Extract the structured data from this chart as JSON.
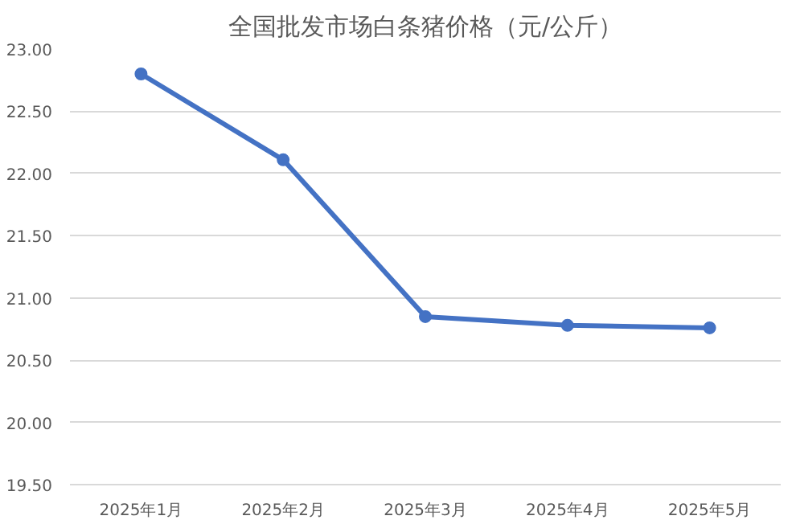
{
  "chart_data": {
    "type": "line",
    "title": "全国批发市场白条猪价格（元/公斤）",
    "categories": [
      "2025年1月",
      "2025年2月",
      "2025年3月",
      "2025年4月",
      "2025年5月"
    ],
    "series": [
      {
        "color": "#4472c4",
        "values": [
          22.8,
          22.11,
          20.85,
          20.78,
          20.76
        ]
      }
    ],
    "ylim": [
      19.5,
      23.0
    ],
    "yticks": [
      {
        "value": 19.5,
        "label": "19.50"
      },
      {
        "value": 20.0,
        "label": "20.00"
      },
      {
        "value": 20.5,
        "label": "20.50"
      },
      {
        "value": 21.0,
        "label": "21.00"
      },
      {
        "value": 21.5,
        "label": "21.50"
      },
      {
        "value": 22.0,
        "label": "22.00"
      },
      {
        "value": 22.5,
        "label": "22.50"
      },
      {
        "value": 23.0,
        "label": "23.00"
      }
    ],
    "grid": "y",
    "marker": "circle",
    "line_style": "solid"
  }
}
